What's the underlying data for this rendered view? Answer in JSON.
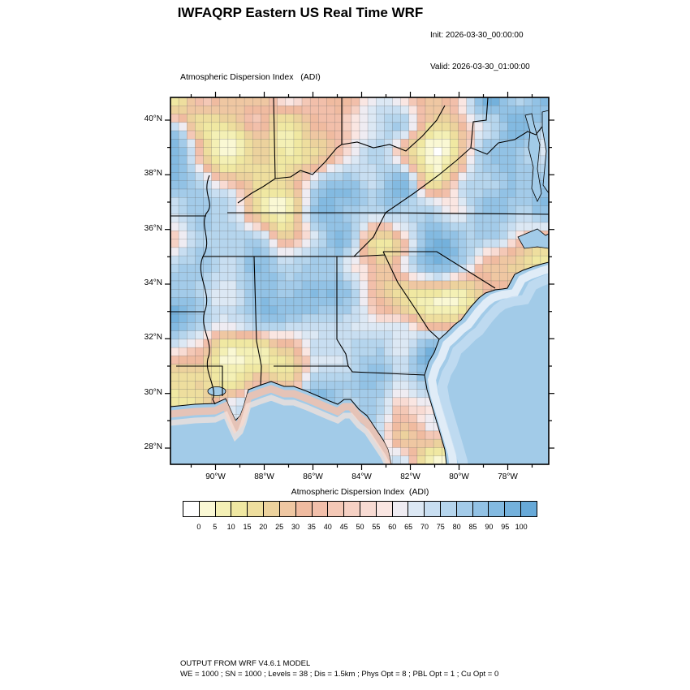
{
  "header": {
    "title": "IWFAQRP Eastern US Real Time WRF",
    "init_label": "Init: 2026-03-30_00:00:00",
    "valid_label": "Valid: 2026-03-30_01:00:00"
  },
  "map": {
    "subtitle": "Atmospheric Dispersion Index   (ADI)",
    "lat_ticks": [
      "40°N",
      "38°N",
      "36°N",
      "34°N",
      "32°N",
      "30°N",
      "28°N"
    ],
    "lon_ticks": [
      "90°W",
      "88°W",
      "86°W",
      "84°W",
      "82°W",
      "80°W",
      "78°W"
    ]
  },
  "colorbar": {
    "title": "Atmospheric Dispersion Index  (ADI)",
    "tick_labels": [
      "0",
      "5",
      "10",
      "15",
      "20",
      "25",
      "30",
      "35",
      "40",
      "45",
      "50",
      "55",
      "60",
      "65",
      "70",
      "75",
      "80",
      "85",
      "90",
      "95",
      "100"
    ],
    "colors": [
      "#FFFFFF",
      "#FAF8D4",
      "#F4F0B5",
      "#F0E8A2",
      "#EEDE9E",
      "#ECD29D",
      "#EFC7A2",
      "#F0BBA0",
      "#F2BFAA",
      "#F4C8B6",
      "#F6D1C4",
      "#F8DBD3",
      "#FAE6E2",
      "#EFECF2",
      "#DCE8F4",
      "#C8DEF1",
      "#B5D5ED",
      "#A3CBE9",
      "#92C2E5",
      "#83BAE1",
      "#74B1DC",
      "#67A9D8"
    ]
  },
  "footer": {
    "line1": "OUTPUT FROM WRF V4.6.1 MODEL",
    "line2": "WE = 1000 ; SN = 1000 ; Levels = 38 ; Dis = 1.5km ; Phys Opt = 8 ; PBL Opt = 1 ; Cu Opt = 0"
  },
  "chart_data": {
    "type": "heatmap",
    "title": "Atmospheric Dispersion Index (ADI)",
    "field": "ADI",
    "value_range": [
      0,
      100
    ],
    "bin_size": 5,
    "lon_ticks": [
      "90°W",
      "88°W",
      "86°W",
      "84°W",
      "82°W",
      "80°W",
      "78°W"
    ],
    "lat_ticks": [
      "40°N",
      "38°N",
      "36°N",
      "34°N",
      "32°N",
      "30°N",
      "28°N"
    ],
    "legend_position": "bottom",
    "colorbar_colors": [
      "#FFFFFF",
      "#FAF8D4",
      "#F4F0B5",
      "#F0E8A2",
      "#EEDE9E",
      "#ECD29D",
      "#EFC7A2",
      "#F0BBA0",
      "#F2BFAA",
      "#F4C8B6",
      "#F6D1C4",
      "#F8DBD3",
      "#FAE6E2",
      "#EFECF2",
      "#DCE8F4",
      "#C8DEF1",
      "#B5D5ED",
      "#A3CBE9",
      "#92C2E5",
      "#83BAE1",
      "#74B1DC",
      "#67A9D8"
    ],
    "ocean_color": "#A2CBE8",
    "grid": {
      "cols": 46,
      "rows": 44,
      "seed": 20260330,
      "octave1": 7,
      "octave2": 13,
      "octave1_weight": 0.68,
      "octave2_weight": 0.32
    }
  }
}
